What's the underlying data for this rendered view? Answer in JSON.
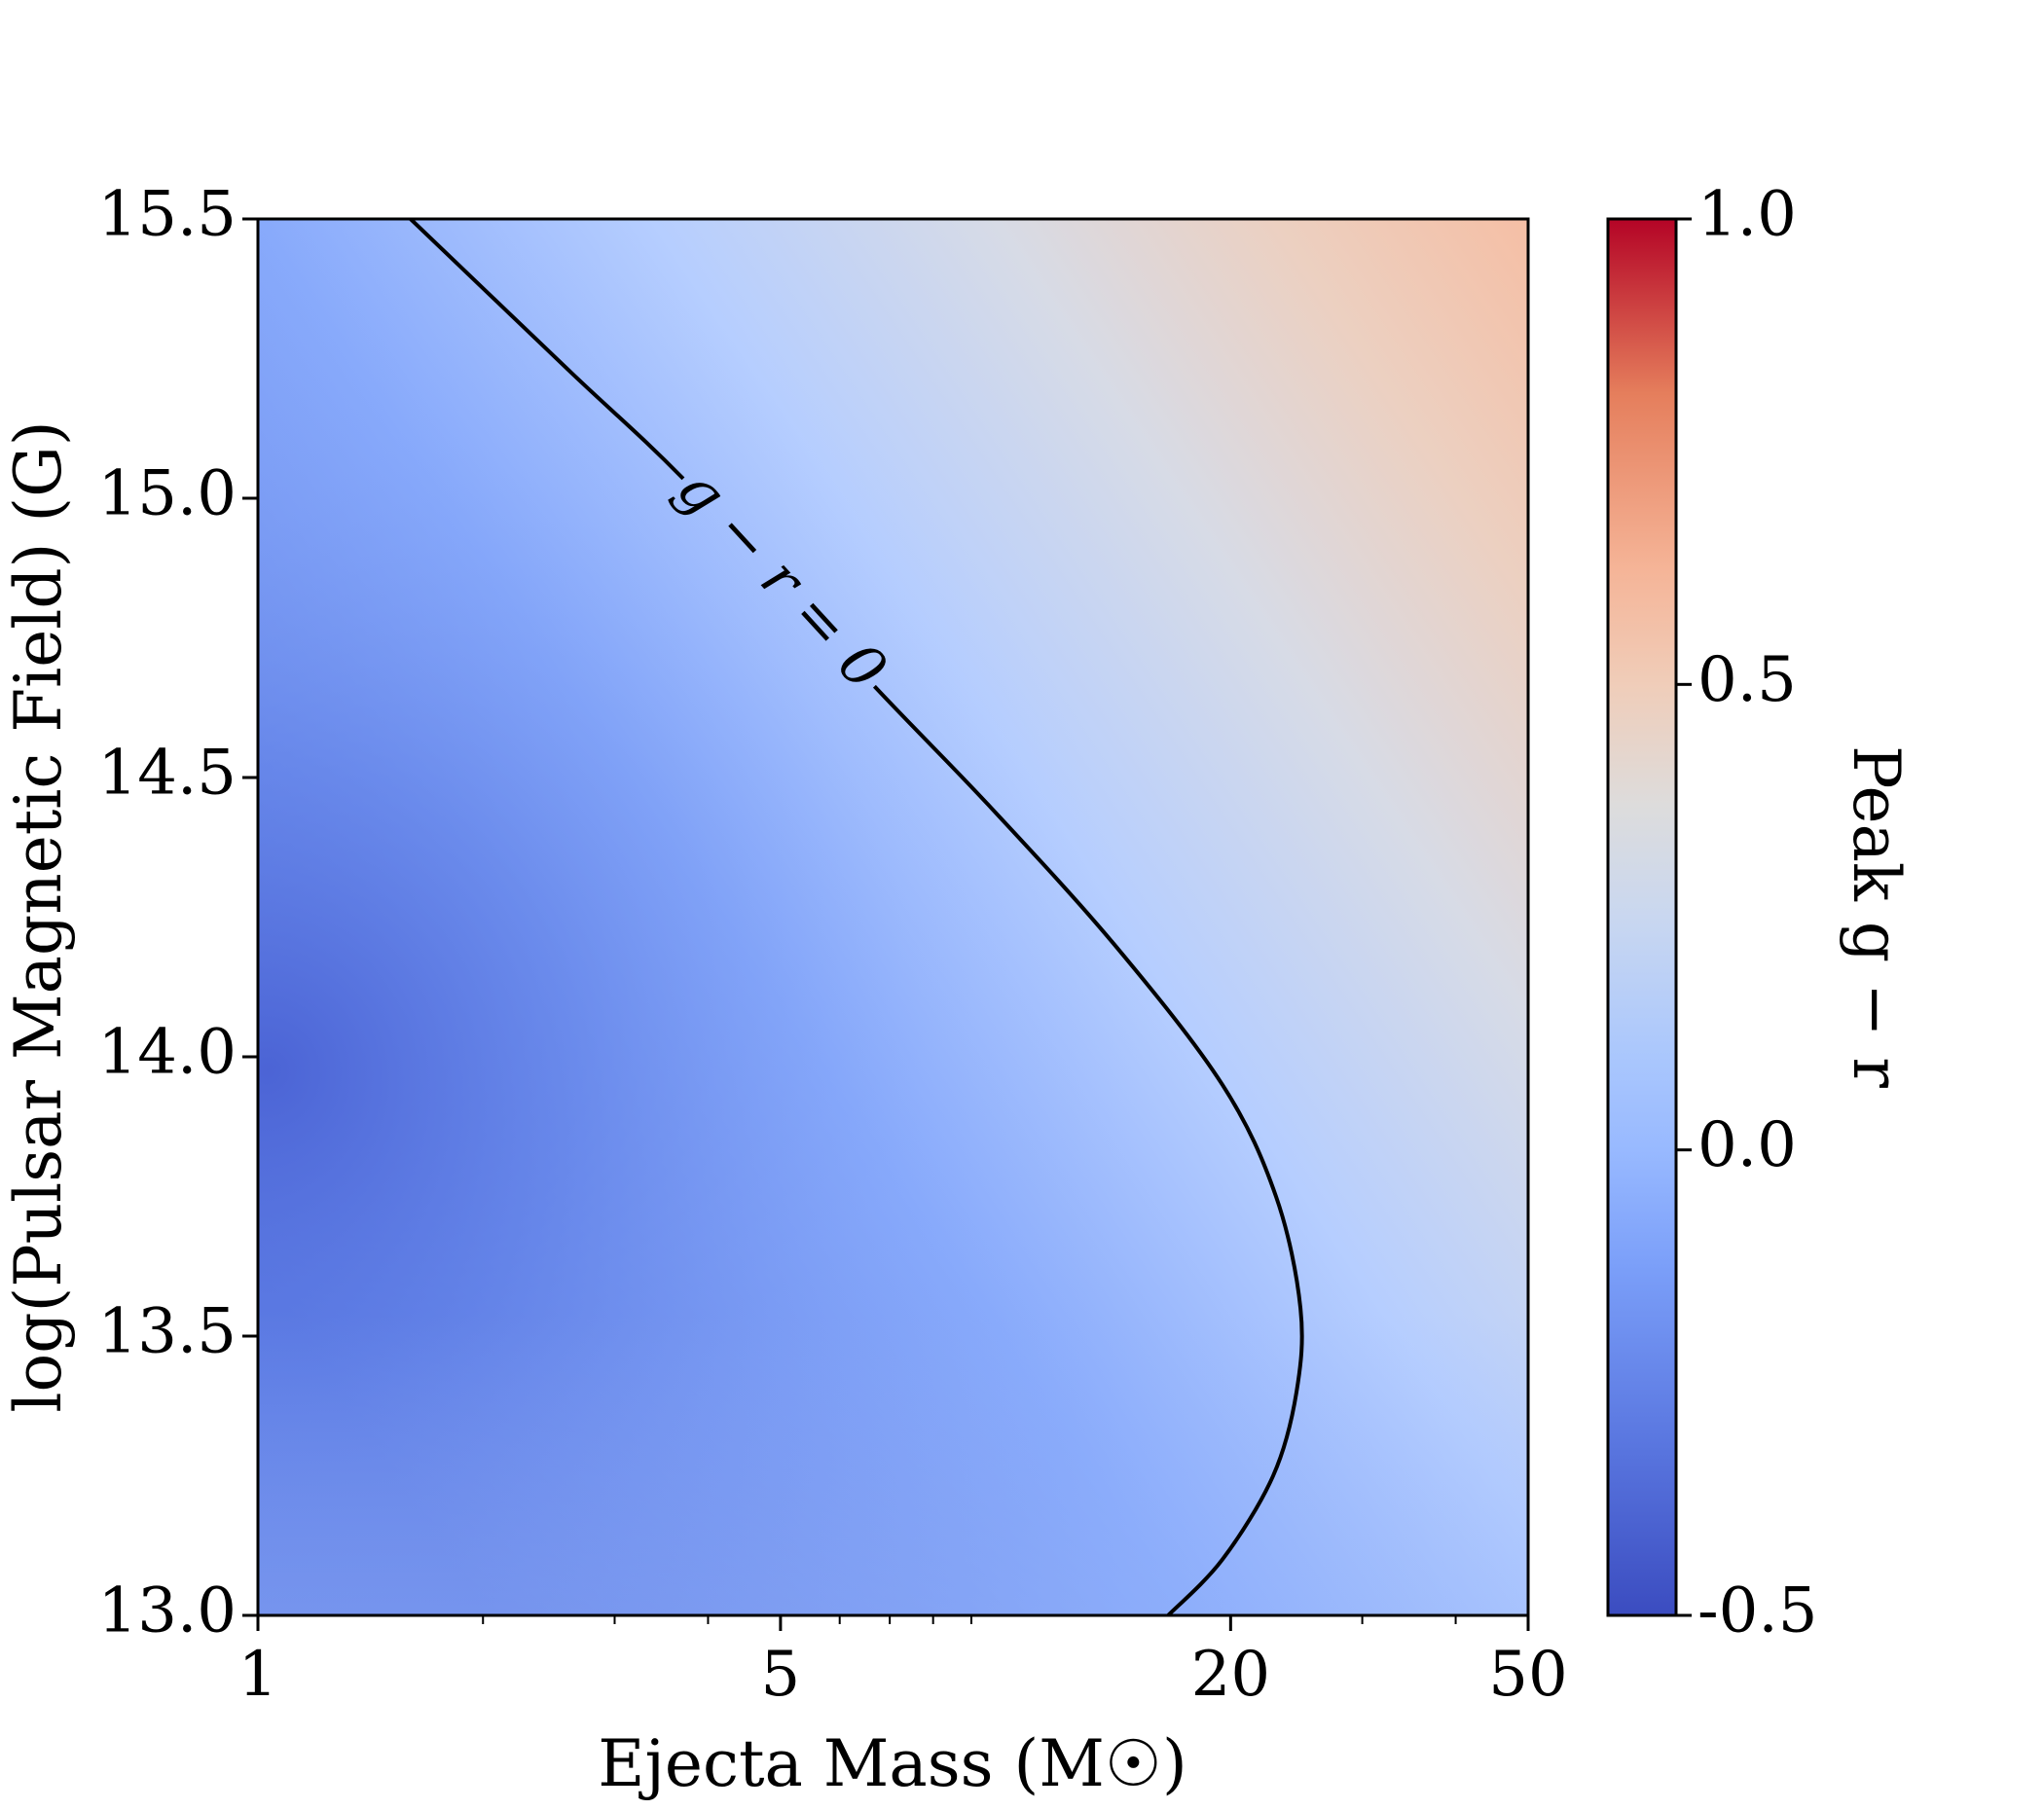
{
  "chart_data": {
    "type": "heatmap",
    "title": "",
    "xlabel": "Ejecta Mass (M☉)",
    "ylabel": "log(Pulsar Magnetic Field) (G)",
    "x_scale": "log",
    "xlim": [
      1,
      50
    ],
    "ylim": [
      13.0,
      15.5
    ],
    "x_ticks": [
      "1",
      "5",
      "20",
      "50"
    ],
    "y_ticks": [
      "13.0",
      "13.5",
      "14.0",
      "14.5",
      "15.0",
      "15.5"
    ],
    "colorbar": {
      "label": "Peak g − r",
      "colormap": "coolwarm",
      "range": [
        -0.5,
        1.0
      ],
      "ticks": [
        "-0.5",
        "0.0",
        "0.5",
        "1.0"
      ]
    },
    "contour": {
      "level": 0,
      "label": "g − r = 0",
      "points": [
        {
          "x": 1.6,
          "y": 15.5
        },
        {
          "x": 2.6,
          "y": 15.23
        },
        {
          "x": 3.8,
          "y": 15.02
        },
        {
          "x": 6.5,
          "y": 14.68
        },
        {
          "x": 9.5,
          "y": 14.45
        },
        {
          "x": 14.0,
          "y": 14.2
        },
        {
          "x": 19.5,
          "y": 13.95
        },
        {
          "x": 23.0,
          "y": 13.75
        },
        {
          "x": 24.8,
          "y": 13.55
        },
        {
          "x": 24.5,
          "y": 13.4
        },
        {
          "x": 22.8,
          "y": 13.25
        },
        {
          "x": 19.5,
          "y": 13.1
        },
        {
          "x": 16.5,
          "y": 13.0
        }
      ]
    },
    "field_samples": [
      {
        "x": 1,
        "y": 13.8,
        "value": -0.45
      },
      {
        "x": 1,
        "y": 15.5,
        "value": -0.17
      },
      {
        "x": 1,
        "y": 13.0,
        "value": -0.3
      },
      {
        "x": 50,
        "y": 15.5,
        "value": 0.47
      },
      {
        "x": 50,
        "y": 13.0,
        "value": 0.15
      }
    ]
  }
}
